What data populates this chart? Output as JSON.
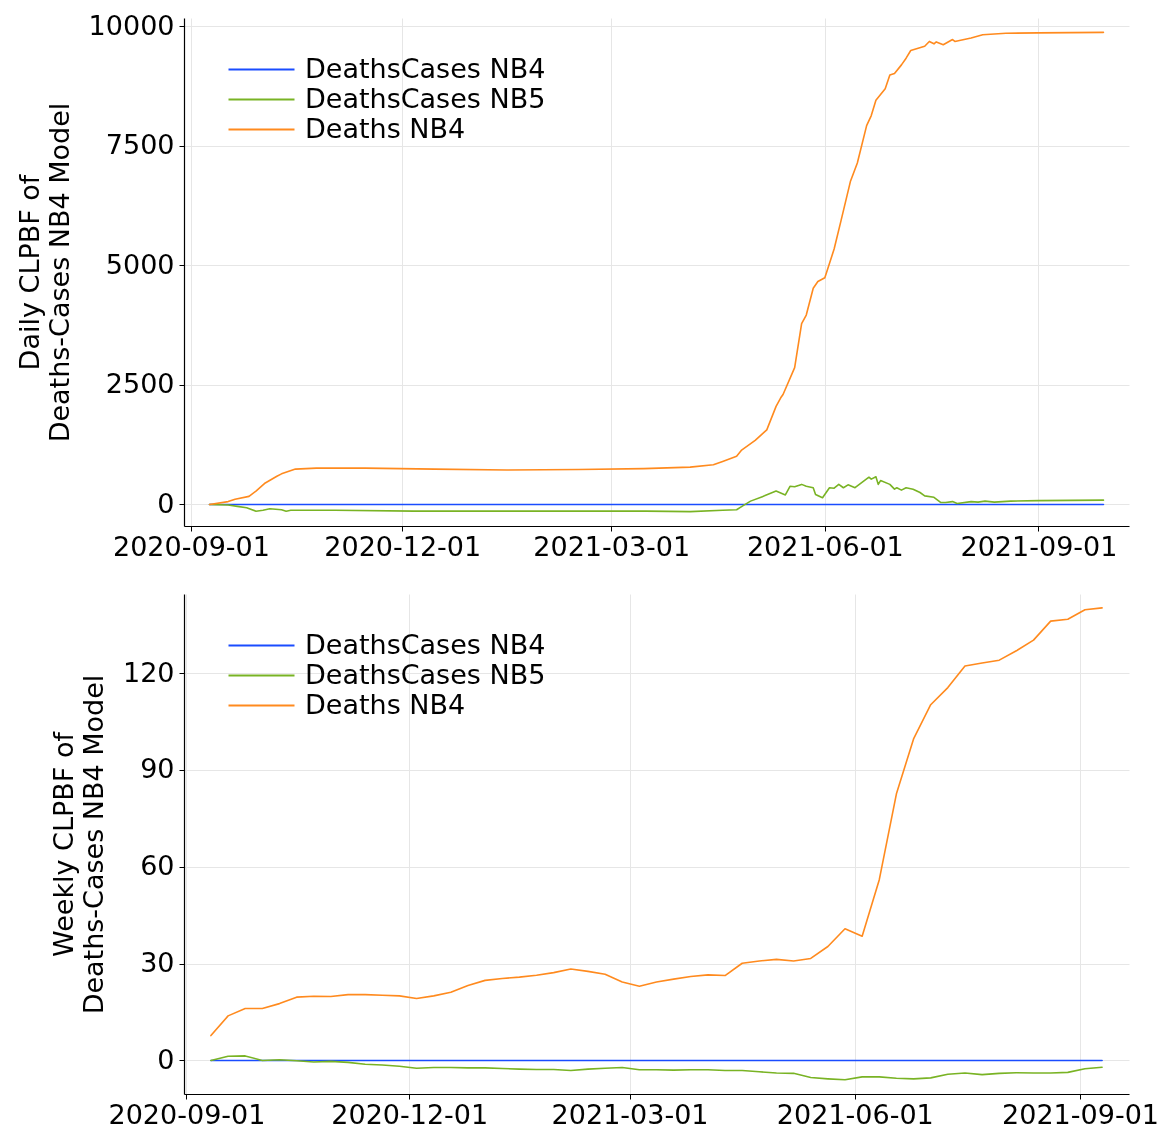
{
  "chart_data": [
    {
      "type": "line",
      "ylabel": "Daily CLPBF of\nDeaths-Cases NB4 Model",
      "xlim": [
        "2020-08-29",
        "2021-10-10"
      ],
      "xticks": [
        "2020-09-01",
        "2020-12-01",
        "2021-03-01",
        "2021-06-01",
        "2021-09-01"
      ],
      "ylim": [
        -450,
        10170
      ],
      "yticks": [
        0,
        2500,
        5000,
        7500,
        10000
      ],
      "grid": true,
      "legend": "top left",
      "series": [
        {
          "name": "DeathsCases NB4",
          "color": "#1a4cff",
          "x": [
            "2020-09-09",
            "2021-09-29"
          ],
          "values": [
            0,
            0
          ]
        },
        {
          "name": "DeathsCases NB5",
          "color": "#79b324",
          "x": [
            "2020-09-09",
            "2020-09-17",
            "2020-09-21",
            "2020-09-25",
            "2020-09-29",
            "2020-10-02",
            "2020-10-05",
            "2020-10-10",
            "2020-10-12",
            "2020-10-14",
            "2020-11-02",
            "2020-12-06",
            "2021-01-25",
            "2021-03-16",
            "2021-04-04",
            "2021-04-18",
            "2021-04-24",
            "2021-04-27",
            "2021-04-30",
            "2021-05-06",
            "2021-05-11",
            "2021-05-15",
            "2021-05-17",
            "2021-05-19",
            "2021-05-22",
            "2021-05-24",
            "2021-05-27",
            "2021-05-28",
            "2021-05-31",
            "2021-06-03",
            "2021-06-05",
            "2021-06-07",
            "2021-06-09",
            "2021-06-11",
            "2021-06-14",
            "2021-06-17",
            "2021-06-20",
            "2021-06-21",
            "2021-06-23",
            "2021-06-24",
            "2021-06-25",
            "2021-06-29",
            "2021-07-01",
            "2021-07-02",
            "2021-07-04",
            "2021-07-06",
            "2021-07-09",
            "2021-07-12",
            "2021-07-14",
            "2021-07-18",
            "2021-07-21",
            "2021-07-23",
            "2021-07-26",
            "2021-07-28",
            "2021-08-03",
            "2021-08-06",
            "2021-08-09",
            "2021-08-13",
            "2021-08-20",
            "2021-09-01",
            "2021-09-29"
          ],
          "values": [
            0,
            -10,
            -40,
            -70,
            -140,
            -120,
            -90,
            -110,
            -140,
            -120,
            -120,
            -140,
            -140,
            -140,
            -150,
            -120,
            -110,
            -20,
            70,
            180,
            280,
            200,
            380,
            370,
            420,
            380,
            350,
            210,
            140,
            350,
            340,
            420,
            350,
            410,
            350,
            460,
            570,
            530,
            580,
            420,
            500,
            420,
            320,
            350,
            300,
            350,
            320,
            250,
            180,
            150,
            40,
            40,
            60,
            20,
            60,
            50,
            70,
            50,
            70,
            80,
            90
          ]
        },
        {
          "name": "Deaths NB4",
          "color": "#ff8a1e",
          "x": [
            "2020-09-09",
            "2020-09-17",
            "2020-09-20",
            "2020-09-26",
            "2020-09-29",
            "2020-10-03",
            "2020-10-08",
            "2020-10-10",
            "2020-10-16",
            "2020-10-25",
            "2020-11-15",
            "2020-12-15",
            "2021-01-15",
            "2021-02-15",
            "2021-03-15",
            "2021-04-04",
            "2021-04-14",
            "2021-04-18",
            "2021-04-24",
            "2021-04-26",
            "2021-05-02",
            "2021-05-07",
            "2021-05-11",
            "2021-05-13",
            "2021-05-14",
            "2021-05-19",
            "2021-05-22",
            "2021-05-24",
            "2021-05-27",
            "2021-05-29",
            "2021-06-01",
            "2021-06-05",
            "2021-06-08",
            "2021-06-12",
            "2021-06-15",
            "2021-06-19",
            "2021-06-21",
            "2021-06-23",
            "2021-06-27",
            "2021-06-29",
            "2021-07-01",
            "2021-07-04",
            "2021-07-06",
            "2021-07-08",
            "2021-07-14",
            "2021-07-16",
            "2021-07-18",
            "2021-07-19",
            "2021-07-22",
            "2021-07-26",
            "2021-07-27",
            "2021-08-03",
            "2021-08-08",
            "2021-08-18",
            "2021-09-01",
            "2021-09-29"
          ],
          "values": [
            0,
            60,
            110,
            170,
            280,
            450,
            590,
            640,
            740,
            760,
            760,
            740,
            720,
            730,
            750,
            780,
            830,
            900,
            1010,
            1130,
            1340,
            1560,
            2050,
            2230,
            2300,
            2860,
            3780,
            3960,
            4520,
            4660,
            4740,
            5340,
            5940,
            6750,
            7140,
            7920,
            8130,
            8450,
            8690,
            8980,
            9010,
            9190,
            9330,
            9490,
            9580,
            9680,
            9630,
            9670,
            9610,
            9720,
            9680,
            9750,
            9820,
            9850,
            9860,
            9870
          ]
        }
      ]
    },
    {
      "type": "line",
      "ylabel": "Weekly CLPBF of\nDeaths-Cases NB4 Model",
      "xlim": [
        "2020-08-31",
        "2021-09-21"
      ],
      "xticks": [
        "2020-09-01",
        "2020-12-01",
        "2021-03-01",
        "2021-06-01",
        "2021-09-01"
      ],
      "ylim": [
        -10.4,
        144.5
      ],
      "yticks": [
        0,
        30,
        60,
        90,
        120
      ],
      "grid": true,
      "legend": "top left",
      "x": [
        "2020-09-11",
        "2020-09-18",
        "2020-09-25",
        "2020-10-02",
        "2020-10-09",
        "2020-10-16",
        "2020-10-23",
        "2020-10-30",
        "2020-11-06",
        "2020-11-13",
        "2020-11-20",
        "2020-11-27",
        "2020-12-04",
        "2020-12-11",
        "2020-12-18",
        "2020-12-25",
        "2021-01-01",
        "2021-01-08",
        "2021-01-15",
        "2021-01-22",
        "2021-01-29",
        "2021-02-05",
        "2021-02-12",
        "2021-02-19",
        "2021-02-26",
        "2021-03-05",
        "2021-03-12",
        "2021-03-19",
        "2021-03-26",
        "2021-04-02",
        "2021-04-09",
        "2021-04-16",
        "2021-04-23",
        "2021-04-30",
        "2021-05-07",
        "2021-05-14",
        "2021-05-21",
        "2021-05-28",
        "2021-06-04",
        "2021-06-11",
        "2021-06-18",
        "2021-06-25",
        "2021-07-02",
        "2021-07-09",
        "2021-07-16",
        "2021-07-23",
        "2021-07-30",
        "2021-08-06",
        "2021-08-13",
        "2021-08-20",
        "2021-08-27",
        "2021-09-03",
        "2021-09-10"
      ],
      "series": [
        {
          "name": "DeathsCases NB4",
          "color": "#1a4cff",
          "x": [
            "2020-09-11",
            "2021-09-10"
          ],
          "values": [
            0,
            0
          ]
        },
        {
          "name": "DeathsCases NB5",
          "color": "#79b324",
          "values": [
            0,
            1.3,
            1.4,
            0,
            0.2,
            -0.1,
            -0.5,
            -0.3,
            -0.6,
            -1.2,
            -1.4,
            -1.8,
            -2.4,
            -2.2,
            -2.2,
            -2.3,
            -2.3,
            -2.5,
            -2.7,
            -2.8,
            -2.8,
            -3.1,
            -2.7,
            -2.4,
            -2.2,
            -2.9,
            -2.9,
            -3.0,
            -2.9,
            -2.9,
            -3.1,
            -3.1,
            -3.5,
            -3.9,
            -4.0,
            -5.3,
            -5.7,
            -6.0,
            -5.1,
            -5.1,
            -5.5,
            -5.7,
            -5.4,
            -4.3,
            -3.9,
            -4.4,
            -4.0,
            -3.8,
            -3.9,
            -3.9,
            -3.7,
            -2.6,
            -2.1
          ]
        },
        {
          "name": "Deaths NB4",
          "color": "#ff8a1e",
          "values": [
            7.7,
            13.8,
            16.1,
            16.1,
            17.6,
            19.6,
            19.9,
            19.8,
            20.4,
            20.4,
            20.2,
            20.0,
            19.2,
            20.0,
            21.1,
            23.2,
            24.8,
            25.4,
            25.8,
            26.4,
            27.2,
            28.3,
            27.6,
            26.7,
            24.3,
            23.0,
            24.3,
            25.2,
            26.0,
            26.5,
            26.3,
            30.1,
            30.8,
            31.3,
            30.8,
            31.6,
            35.3,
            40.8,
            38.5,
            56.0,
            82.6,
            99.6,
            110.2,
            115.5,
            122.2,
            123.1,
            124.0,
            126.9,
            130.2,
            136.1,
            136.7,
            139.6,
            140.2
          ]
        }
      ]
    }
  ]
}
